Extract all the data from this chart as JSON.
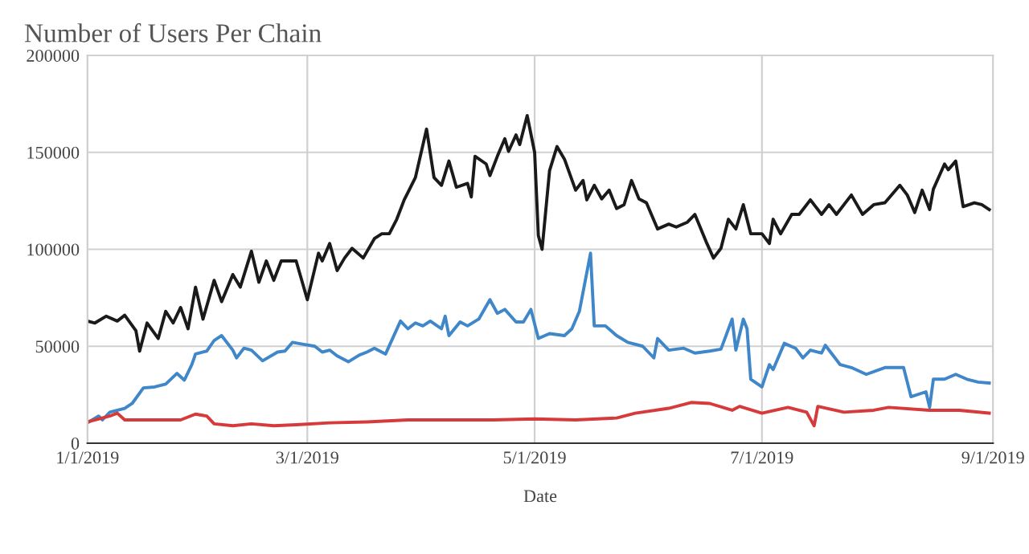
{
  "chart_data": {
    "type": "line",
    "title": "Number of Users Per Chain",
    "xlabel": "Date",
    "xlim": [
      "2019-01-01",
      "2019-09-01"
    ],
    "xticks": [
      {
        "value": "2019-01-01",
        "label": "1/1/2019"
      },
      {
        "value": "2019-03-01",
        "label": "3/1/2019"
      },
      {
        "value": "2019-05-01",
        "label": "5/1/2019"
      },
      {
        "value": "2019-07-01",
        "label": "7/1/2019"
      },
      {
        "value": "2019-09-01",
        "label": "9/1/2019"
      }
    ],
    "ylim": [
      0,
      200000
    ],
    "yticks": [
      0,
      50000,
      100000,
      150000,
      200000
    ],
    "grid": true,
    "marker": "none",
    "line_style": "solid",
    "series": [
      {
        "color": "#1a1a1a",
        "x": [
          "2019-01-01",
          "2019-01-03",
          "2019-01-06",
          "2019-01-09",
          "2019-01-11",
          "2019-01-14",
          "2019-01-15",
          "2019-01-17",
          "2019-01-20",
          "2019-01-22",
          "2019-01-24",
          "2019-01-26",
          "2019-01-28",
          "2019-01-30",
          "2019-02-01",
          "2019-02-04",
          "2019-02-06",
          "2019-02-09",
          "2019-02-11",
          "2019-02-14",
          "2019-02-16",
          "2019-02-18",
          "2019-02-20",
          "2019-02-22",
          "2019-02-24",
          "2019-02-26",
          "2019-03-01",
          "2019-03-04",
          "2019-03-05",
          "2019-03-07",
          "2019-03-09",
          "2019-03-11",
          "2019-03-13",
          "2019-03-16",
          "2019-03-19",
          "2019-03-21",
          "2019-03-23",
          "2019-03-25",
          "2019-03-27",
          "2019-03-30",
          "2019-04-02",
          "2019-04-04",
          "2019-04-06",
          "2019-04-08",
          "2019-04-10",
          "2019-04-13",
          "2019-04-14",
          "2019-04-15",
          "2019-04-18",
          "2019-04-19",
          "2019-04-21",
          "2019-04-23",
          "2019-04-24",
          "2019-04-26",
          "2019-04-27",
          "2019-04-29",
          "2019-05-01",
          "2019-05-02",
          "2019-05-03",
          "2019-05-05",
          "2019-05-07",
          "2019-05-09",
          "2019-05-12",
          "2019-05-14",
          "2019-05-15",
          "2019-05-17",
          "2019-05-19",
          "2019-05-21",
          "2019-05-23",
          "2019-05-25",
          "2019-05-27",
          "2019-05-29",
          "2019-05-31",
          "2019-06-03",
          "2019-06-06",
          "2019-06-08",
          "2019-06-11",
          "2019-06-13",
          "2019-06-16",
          "2019-06-18",
          "2019-06-20",
          "2019-06-22",
          "2019-06-24",
          "2019-06-26",
          "2019-06-28",
          "2019-07-01",
          "2019-07-03",
          "2019-07-04",
          "2019-07-06",
          "2019-07-09",
          "2019-07-11",
          "2019-07-14",
          "2019-07-17",
          "2019-07-19",
          "2019-07-21",
          "2019-07-25",
          "2019-07-28",
          "2019-07-31",
          "2019-08-03",
          "2019-08-07",
          "2019-08-09",
          "2019-08-11",
          "2019-08-13",
          "2019-08-15",
          "2019-08-16",
          "2019-08-19",
          "2019-08-20",
          "2019-08-22",
          "2019-08-24",
          "2019-08-27",
          "2019-08-29",
          "2019-08-31"
        ],
        "values": [
          63000,
          62000,
          65500,
          63000,
          66000,
          58000,
          47500,
          62000,
          54000,
          68000,
          62000,
          70000,
          59000,
          80500,
          64000,
          84000,
          73000,
          87000,
          80500,
          99000,
          83000,
          94000,
          84000,
          94000,
          94000,
          94000,
          74000,
          98000,
          94000,
          103000,
          89000,
          95500,
          100500,
          95500,
          105500,
          108000,
          108000,
          115500,
          125500,
          137000,
          162000,
          137000,
          133000,
          145500,
          132000,
          134000,
          127000,
          148000,
          144000,
          138000,
          148000,
          157000,
          150500,
          159000,
          154000,
          169000,
          150000,
          107000,
          100000,
          140500,
          153000,
          146500,
          130500,
          135500,
          125500,
          133000,
          126000,
          130500,
          121000,
          123000,
          135500,
          126000,
          124000,
          110500,
          113000,
          111500,
          114000,
          118000,
          104000,
          95500,
          100500,
          115500,
          110500,
          123000,
          108000,
          108000,
          103000,
          115500,
          108000,
          118000,
          118000,
          125500,
          118000,
          123000,
          118000,
          128000,
          118000,
          123000,
          124000,
          133000,
          128000,
          119000,
          130500,
          120500,
          131000,
          144000,
          141000,
          145500,
          122000,
          124000,
          123000,
          120500
        ]
      },
      {
        "color": "#3f87c9",
        "x": [
          "2019-01-01",
          "2019-01-04",
          "2019-01-05",
          "2019-01-07",
          "2019-01-11",
          "2019-01-13",
          "2019-01-16",
          "2019-01-19",
          "2019-01-22",
          "2019-01-25",
          "2019-01-27",
          "2019-01-29",
          "2019-01-30",
          "2019-02-02",
          "2019-02-04",
          "2019-02-06",
          "2019-02-09",
          "2019-02-10",
          "2019-02-12",
          "2019-02-14",
          "2019-02-17",
          "2019-02-21",
          "2019-02-23",
          "2019-02-25",
          "2019-02-28",
          "2019-03-03",
          "2019-03-05",
          "2019-03-07",
          "2019-03-09",
          "2019-03-12",
          "2019-03-15",
          "2019-03-17",
          "2019-03-19",
          "2019-03-22",
          "2019-03-26",
          "2019-03-28",
          "2019-03-30",
          "2019-04-01",
          "2019-04-03",
          "2019-04-06",
          "2019-04-07",
          "2019-04-08",
          "2019-04-11",
          "2019-04-13",
          "2019-04-16",
          "2019-04-19",
          "2019-04-21",
          "2019-04-23",
          "2019-04-26",
          "2019-04-28",
          "2019-04-30",
          "2019-05-02",
          "2019-05-05",
          "2019-05-09",
          "2019-05-11",
          "2019-05-13",
          "2019-05-16",
          "2019-05-17",
          "2019-05-20",
          "2019-05-23",
          "2019-05-26",
          "2019-05-30",
          "2019-06-02",
          "2019-06-03",
          "2019-06-06",
          "2019-06-10",
          "2019-06-13",
          "2019-06-17",
          "2019-06-20",
          "2019-06-23",
          "2019-06-24",
          "2019-06-26",
          "2019-06-27",
          "2019-06-28",
          "2019-07-01",
          "2019-07-03",
          "2019-07-04",
          "2019-07-07",
          "2019-07-10",
          "2019-07-12",
          "2019-07-14",
          "2019-07-17",
          "2019-07-18",
          "2019-07-22",
          "2019-07-25",
          "2019-07-29",
          "2019-08-03",
          "2019-08-08",
          "2019-08-10",
          "2019-08-14",
          "2019-08-15",
          "2019-08-16",
          "2019-08-19",
          "2019-08-22",
          "2019-08-25",
          "2019-08-28",
          "2019-08-31"
        ],
        "values": [
          10500,
          14000,
          12000,
          16000,
          18000,
          20500,
          28500,
          29000,
          30500,
          36000,
          32500,
          40500,
          46000,
          47500,
          53000,
          55500,
          48000,
          44000,
          49000,
          48000,
          42500,
          47000,
          47500,
          52000,
          51000,
          50000,
          47000,
          48000,
          45000,
          42000,
          45500,
          47000,
          49000,
          46000,
          63000,
          59000,
          62000,
          60500,
          63000,
          59000,
          65500,
          55500,
          62500,
          60500,
          64000,
          74000,
          67000,
          69000,
          62500,
          62500,
          69000,
          54000,
          56500,
          55500,
          59000,
          68000,
          98000,
          60500,
          60500,
          55500,
          52000,
          50000,
          44000,
          54000,
          48000,
          49000,
          46500,
          47500,
          48500,
          64000,
          48000,
          64000,
          59000,
          33000,
          29000,
          40500,
          38000,
          51500,
          49000,
          44000,
          48000,
          46500,
          50500,
          40500,
          39000,
          35500,
          39000,
          39000,
          24000,
          26500,
          18500,
          33000,
          33000,
          35500,
          33000,
          31500,
          31000
        ]
      },
      {
        "color": "#d63a3a",
        "x": [
          "2019-01-01",
          "2019-01-07",
          "2019-01-09",
          "2019-01-11",
          "2019-01-17",
          "2019-01-26",
          "2019-01-30",
          "2019-02-02",
          "2019-02-04",
          "2019-02-09",
          "2019-02-14",
          "2019-02-20",
          "2019-02-26",
          "2019-03-07",
          "2019-03-17",
          "2019-03-28",
          "2019-04-08",
          "2019-04-20",
          "2019-05-01",
          "2019-05-12",
          "2019-05-23",
          "2019-05-28",
          "2019-06-06",
          "2019-06-12",
          "2019-06-17",
          "2019-06-23",
          "2019-06-25",
          "2019-07-01",
          "2019-07-08",
          "2019-07-13",
          "2019-07-15",
          "2019-07-16",
          "2019-07-23",
          "2019-07-31",
          "2019-08-04",
          "2019-08-15",
          "2019-08-23",
          "2019-08-31"
        ],
        "values": [
          11000,
          14000,
          15500,
          12000,
          12000,
          12000,
          15000,
          14000,
          10000,
          9000,
          10000,
          9000,
          9500,
          10500,
          11000,
          12000,
          12000,
          12000,
          12500,
          12000,
          13000,
          15500,
          18000,
          21000,
          20500,
          17000,
          19000,
          15500,
          18500,
          16000,
          9000,
          19000,
          16000,
          17000,
          18500,
          17000,
          17000,
          15500
        ]
      }
    ]
  }
}
